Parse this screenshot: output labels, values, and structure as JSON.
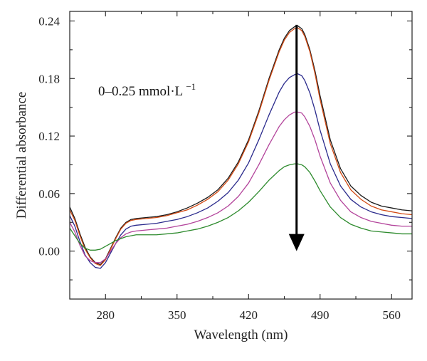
{
  "chart_data": {
    "type": "line",
    "xlabel": "Wavelength (nm)",
    "ylabel": "Differential absorbance",
    "xlim": [
      245,
      580
    ],
    "ylim": [
      -0.05,
      0.25
    ],
    "x_ticks": [
      280,
      350,
      420,
      490,
      560
    ],
    "x_tick_labels": [
      "280",
      "350",
      "420",
      "490",
      "560"
    ],
    "y_ticks": [
      0.0,
      0.06,
      0.12,
      0.18,
      0.24
    ],
    "y_tick_labels": [
      "0.00",
      "0.06",
      "0.12",
      "0.18",
      "0.24"
    ],
    "grid": false,
    "annotation": {
      "text_main": "0–0.25 mmol·L",
      "text_sup": "−1",
      "arrow_x": 467,
      "arrow_from": 0.236,
      "arrow_to": 0.0
    },
    "x": [
      245,
      250,
      255,
      260,
      265,
      270,
      275,
      280,
      285,
      290,
      295,
      300,
      305,
      310,
      320,
      330,
      340,
      350,
      360,
      370,
      380,
      390,
      400,
      410,
      420,
      430,
      440,
      450,
      455,
      460,
      465,
      468,
      472,
      475,
      480,
      485,
      490,
      500,
      510,
      520,
      530,
      540,
      550,
      560,
      570,
      580
    ],
    "series": [
      {
        "color": "#1a1a1a",
        "values": [
          0.046,
          0.034,
          0.018,
          0.004,
          -0.006,
          -0.012,
          -0.014,
          -0.008,
          0.003,
          0.014,
          0.024,
          0.03,
          0.033,
          0.034,
          0.035,
          0.036,
          0.038,
          0.041,
          0.045,
          0.05,
          0.056,
          0.064,
          0.076,
          0.093,
          0.116,
          0.146,
          0.18,
          0.21,
          0.222,
          0.23,
          0.234,
          0.235,
          0.232,
          0.226,
          0.21,
          0.188,
          0.162,
          0.116,
          0.086,
          0.068,
          0.058,
          0.051,
          0.047,
          0.045,
          0.043,
          0.042
        ]
      },
      {
        "color": "#d24a14",
        "values": [
          0.043,
          0.032,
          0.016,
          0.002,
          -0.007,
          -0.013,
          -0.015,
          -0.009,
          0.002,
          0.013,
          0.023,
          0.029,
          0.032,
          0.033,
          0.034,
          0.035,
          0.037,
          0.04,
          0.043,
          0.048,
          0.054,
          0.062,
          0.074,
          0.091,
          0.114,
          0.144,
          0.178,
          0.208,
          0.22,
          0.228,
          0.232,
          0.233,
          0.23,
          0.224,
          0.208,
          0.185,
          0.158,
          0.112,
          0.082,
          0.064,
          0.054,
          0.047,
          0.043,
          0.041,
          0.039,
          0.038
        ]
      },
      {
        "color": "#2a2a8c",
        "values": [
          0.037,
          0.026,
          0.01,
          -0.004,
          -0.012,
          -0.017,
          -0.018,
          -0.012,
          -0.002,
          0.008,
          0.017,
          0.023,
          0.026,
          0.027,
          0.028,
          0.029,
          0.031,
          0.033,
          0.036,
          0.04,
          0.045,
          0.052,
          0.061,
          0.074,
          0.092,
          0.116,
          0.142,
          0.166,
          0.175,
          0.181,
          0.184,
          0.185,
          0.183,
          0.178,
          0.165,
          0.147,
          0.126,
          0.091,
          0.068,
          0.054,
          0.046,
          0.041,
          0.038,
          0.036,
          0.035,
          0.034
        ]
      },
      {
        "color": "#b3449b",
        "values": [
          0.03,
          0.02,
          0.006,
          -0.005,
          -0.01,
          -0.012,
          -0.012,
          -0.008,
          0.0,
          0.008,
          0.014,
          0.018,
          0.02,
          0.021,
          0.022,
          0.023,
          0.024,
          0.026,
          0.028,
          0.031,
          0.035,
          0.04,
          0.047,
          0.057,
          0.071,
          0.09,
          0.111,
          0.13,
          0.137,
          0.142,
          0.145,
          0.145,
          0.144,
          0.14,
          0.13,
          0.116,
          0.099,
          0.071,
          0.053,
          0.041,
          0.035,
          0.031,
          0.029,
          0.027,
          0.026,
          0.026
        ]
      },
      {
        "color": "#2e8b2e",
        "values": [
          0.024,
          0.016,
          0.008,
          0.003,
          0.001,
          0.001,
          0.002,
          0.005,
          0.008,
          0.011,
          0.013,
          0.015,
          0.016,
          0.017,
          0.017,
          0.017,
          0.018,
          0.019,
          0.021,
          0.023,
          0.026,
          0.03,
          0.035,
          0.042,
          0.051,
          0.062,
          0.074,
          0.084,
          0.088,
          0.09,
          0.091,
          0.091,
          0.09,
          0.088,
          0.082,
          0.073,
          0.063,
          0.046,
          0.035,
          0.028,
          0.024,
          0.021,
          0.02,
          0.019,
          0.018,
          0.018
        ]
      }
    ]
  }
}
